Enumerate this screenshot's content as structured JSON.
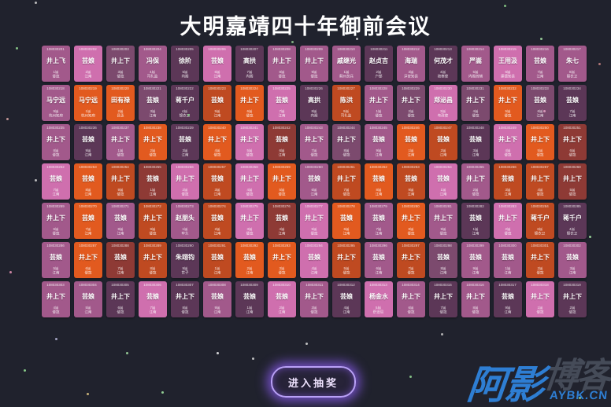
{
  "title": "大明嘉靖四十年御前会议",
  "button": {
    "label": "进入抽奖"
  },
  "watermark": {
    "part1": "阿影",
    "part2": "博客",
    "url": "AYBK.CN"
  },
  "palette": {
    "pink": "#cf6fae",
    "mauve": "#a2598b",
    "purple": "#7c4a6e",
    "dark": "#5c3757",
    "orange": "#e25a1f",
    "red": "#bf4a21",
    "maroon": "#8e3a35"
  },
  "background_color": "#20222d",
  "accent_glow_color": "#8e5ef6",
  "grid": {
    "rows": 7,
    "cols": 17,
    "depts": {
      "井上飞": "倭寇",
      "井上下": "倭寇",
      "芸娘": "江南",
      "冯保": "司礼监",
      "徐阶": "内阁",
      "高拱": "内阁",
      "戚继光": "蓟州总兵",
      "赵贞吉": "户部",
      "海瑞": "淳安知县",
      "何茂才": "按察使",
      "严嵩": "内阁首辅",
      "王用汲": "建德知县",
      "朱七": "锦衣卫",
      "马宁远": "杭州知府",
      "田有禄": "县丞",
      "蒋千户": "锦衣卫",
      "郑泌昌": "布政使",
      "陈洪": "司礼监",
      "赵朋头": "牢头",
      "朱翊钧": "世子",
      "杨金水": "织造局"
    },
    "cards": [
      [
        "108030201",
        "井上飞",
        "mauve",
        "1届"
      ],
      [
        "108030202",
        "芸娘",
        "pink",
        "2届"
      ],
      [
        "108030203",
        "井上下",
        "purple",
        "3届"
      ],
      [
        "108030204",
        "冯保",
        "mauve",
        "4届"
      ],
      [
        "108030205",
        "徐阶",
        "dark",
        "5届"
      ],
      [
        "108030206",
        "芸娘",
        "pink",
        "6届"
      ],
      [
        "108030207",
        "高拱",
        "dark",
        "7届"
      ],
      [
        "108030208",
        "井上下",
        "mauve",
        "8届"
      ],
      [
        "108030209",
        "井上下",
        "mauve",
        "9届"
      ],
      [
        "108030210",
        "戚继光",
        "mauve",
        "1届"
      ],
      [
        "108030211",
        "赵贞吉",
        "dark",
        "2届"
      ],
      [
        "108030212",
        "海瑞",
        "mauve",
        "3届"
      ],
      [
        "108030213",
        "何茂才",
        "dark",
        "4届"
      ],
      [
        "108030214",
        "严嵩",
        "mauve",
        "5届"
      ],
      [
        "108030215",
        "王用汲",
        "pink",
        "6届"
      ],
      [
        "108030216",
        "芸娘",
        "mauve",
        "7届"
      ],
      [
        "108030217",
        "朱七",
        "mauve",
        "8届"
      ],
      [
        "108030218",
        "马宁远",
        "mauve",
        "9届"
      ],
      [
        "108030219",
        "马宁远",
        "orange",
        "1届"
      ],
      [
        "108030220",
        "田有禄",
        "orange",
        "2届"
      ],
      [
        "108030221",
        "芸娘",
        "purple",
        "3届"
      ],
      [
        "108030222",
        "蒋千户",
        "dark",
        "4届"
      ],
      [
        "108030223",
        "芸娘",
        "red",
        "5届"
      ],
      [
        "108030224",
        "井上下",
        "orange",
        "6届"
      ],
      [
        "108030225",
        "芸娘",
        "pink",
        "7届"
      ],
      [
        "108030226",
        "高拱",
        "dark",
        "8届"
      ],
      [
        "108030227",
        "陈洪",
        "red",
        "9届"
      ],
      [
        "108030228",
        "井上下",
        "mauve",
        "1届"
      ],
      [
        "108030229",
        "井上下",
        "purple",
        "2届"
      ],
      [
        "108030230",
        "郑泌昌",
        "pink",
        "3届"
      ],
      [
        "108030231",
        "井上下",
        "purple",
        "4届"
      ],
      [
        "108030232",
        "井上下",
        "orange",
        "5届"
      ],
      [
        "108030233",
        "芸娘",
        "purple",
        "6届"
      ],
      [
        "108030234",
        "芸娘",
        "dark",
        "7届"
      ],
      [
        "108030235",
        "井上下",
        "mauve",
        "8届"
      ],
      [
        "108030236",
        "芸娘",
        "dark",
        "9届"
      ],
      [
        "108030237",
        "井上下",
        "mauve",
        "1届"
      ],
      [
        "108030238",
        "井上下",
        "orange",
        "2届"
      ],
      [
        "108030239",
        "芸娘",
        "dark",
        "3届"
      ],
      [
        "108030240",
        "井上下",
        "orange",
        "4届"
      ],
      [
        "108030241",
        "井上下",
        "pink",
        "5届"
      ],
      [
        "108030242",
        "芸娘",
        "maroon",
        "6届"
      ],
      [
        "108030243",
        "井上下",
        "mauve",
        "7届"
      ],
      [
        "108030244",
        "井上下",
        "purple",
        "8届"
      ],
      [
        "108030245",
        "芸娘",
        "mauve",
        "9届"
      ],
      [
        "108030246",
        "芸娘",
        "orange",
        "1届"
      ],
      [
        "108030247",
        "芸娘",
        "red",
        "2届"
      ],
      [
        "108030248",
        "芸娘",
        "dark",
        "3届"
      ],
      [
        "108030249",
        "井上下",
        "pink",
        "4届"
      ],
      [
        "108030250",
        "井上下",
        "orange",
        "5届"
      ],
      [
        "108030251",
        "井上下",
        "maroon",
        "6届"
      ],
      [
        "108030252",
        "芸娘",
        "pink",
        "7届"
      ],
      [
        "108030253",
        "芸娘",
        "orange",
        "8届"
      ],
      [
        "108030254",
        "井上下",
        "red",
        "9届"
      ],
      [
        "108030255",
        "芸娘",
        "maroon",
        "1届"
      ],
      [
        "108030256",
        "井上下",
        "pink",
        "2届"
      ],
      [
        "108030257",
        "芸娘",
        "red",
        "3届"
      ],
      [
        "108030258",
        "井上下",
        "pink",
        "4届"
      ],
      [
        "108030259",
        "井上下",
        "orange",
        "5届"
      ],
      [
        "108030260",
        "芸娘",
        "mauve",
        "6届"
      ],
      [
        "108030261",
        "井上下",
        "red",
        "7届"
      ],
      [
        "108030262",
        "芸娘",
        "orange",
        "8届"
      ],
      [
        "108030263",
        "芸娘",
        "red",
        "9届"
      ],
      [
        "108030264",
        "芸娘",
        "pink",
        "1届"
      ],
      [
        "108030265",
        "井上下",
        "mauve",
        "2届"
      ],
      [
        "108030266",
        "芸娘",
        "red",
        "3届"
      ],
      [
        "108030267",
        "井上下",
        "red",
        "4届"
      ],
      [
        "108030268",
        "井上下",
        "maroon",
        "5届"
      ],
      [
        "108030269",
        "井上下",
        "mauve",
        "6届"
      ],
      [
        "108030270",
        "芸娘",
        "orange",
        "7届"
      ],
      [
        "108030271",
        "芸娘",
        "mauve",
        "8届"
      ],
      [
        "108030272",
        "井上下",
        "red",
        "9届"
      ],
      [
        "108030273",
        "赵朋头",
        "mauve",
        "1届"
      ],
      [
        "108030274",
        "芸娘",
        "red",
        "2届"
      ],
      [
        "108030275",
        "井上下",
        "pink",
        "3届"
      ],
      [
        "108030276",
        "芸娘",
        "maroon",
        "4届"
      ],
      [
        "108030277",
        "井上下",
        "pink",
        "5届"
      ],
      [
        "108030278",
        "芸娘",
        "orange",
        "6届"
      ],
      [
        "108030279",
        "芸娘",
        "mauve",
        "7届"
      ],
      [
        "108030280",
        "井上下",
        "orange",
        "8届"
      ],
      [
        "108030281",
        "井上下",
        "mauve",
        "9届"
      ],
      [
        "108030282",
        "芸娘",
        "dark",
        "1届"
      ],
      [
        "108030283",
        "井上下",
        "pink",
        "2届"
      ],
      [
        "108030284",
        "蒋千户",
        "red",
        "3届"
      ],
      [
        "108030285",
        "蒋千户",
        "dark",
        "4届"
      ],
      [
        "108030286",
        "芸娘",
        "mauve",
        "5届"
      ],
      [
        "108030287",
        "井上下",
        "orange",
        "6届"
      ],
      [
        "108030288",
        "芸娘",
        "maroon",
        "7届"
      ],
      [
        "108030289",
        "井上下",
        "red",
        "8届"
      ],
      [
        "108030290",
        "朱翊钧",
        "dark",
        "9届"
      ],
      [
        "108030291",
        "芸娘",
        "red",
        "1届"
      ],
      [
        "108030292",
        "芸娘",
        "orange",
        "2届"
      ],
      [
        "108030293",
        "井上下",
        "orange",
        "3届"
      ],
      [
        "108030294",
        "芸娘",
        "pink",
        "4届"
      ],
      [
        "108030295",
        "井上下",
        "red",
        "5届"
      ],
      [
        "108030296",
        "芸娘",
        "mauve",
        "6届"
      ],
      [
        "108030297",
        "井上下",
        "red",
        "7届"
      ],
      [
        "108030298",
        "芸娘",
        "purple",
        "8届"
      ],
      [
        "108030299",
        "芸娘",
        "mauve",
        "9届"
      ],
      [
        "108030300",
        "芸娘",
        "mauve",
        "1届"
      ],
      [
        "108030301",
        "井上下",
        "red",
        "2届"
      ],
      [
        "108030302",
        "芸娘",
        "mauve",
        "3届"
      ],
      [
        "108030303",
        "井上下",
        "mauve",
        "4届"
      ],
      [
        "108030304",
        "芸娘",
        "mauve",
        "5届"
      ],
      [
        "108030305",
        "井上下",
        "dark",
        "6届"
      ],
      [
        "108030306",
        "芸娘",
        "pink",
        "7届"
      ],
      [
        "108030307",
        "井上下",
        "dark",
        "8届"
      ],
      [
        "108030308",
        "芸娘",
        "mauve",
        "9届"
      ],
      [
        "108030309",
        "芸娘",
        "dark",
        "1届"
      ],
      [
        "108030310",
        "芸娘",
        "pink",
        "2届"
      ],
      [
        "108030311",
        "井上下",
        "mauve",
        "3届"
      ],
      [
        "108030312",
        "芸娘",
        "dark",
        "4届"
      ],
      [
        "108030313",
        "杨金水",
        "pink",
        "5届"
      ],
      [
        "108030314",
        "井上下",
        "mauve",
        "6届"
      ],
      [
        "108030315",
        "井上下",
        "dark",
        "7届"
      ],
      [
        "108030316",
        "井上下",
        "mauve",
        "8届"
      ],
      [
        "108030317",
        "芸娘",
        "dark",
        "9届"
      ],
      [
        "108030318",
        "井上下",
        "pink",
        "1届"
      ],
      [
        "108030319",
        "井上下",
        "dark",
        "2届"
      ]
    ]
  }
}
